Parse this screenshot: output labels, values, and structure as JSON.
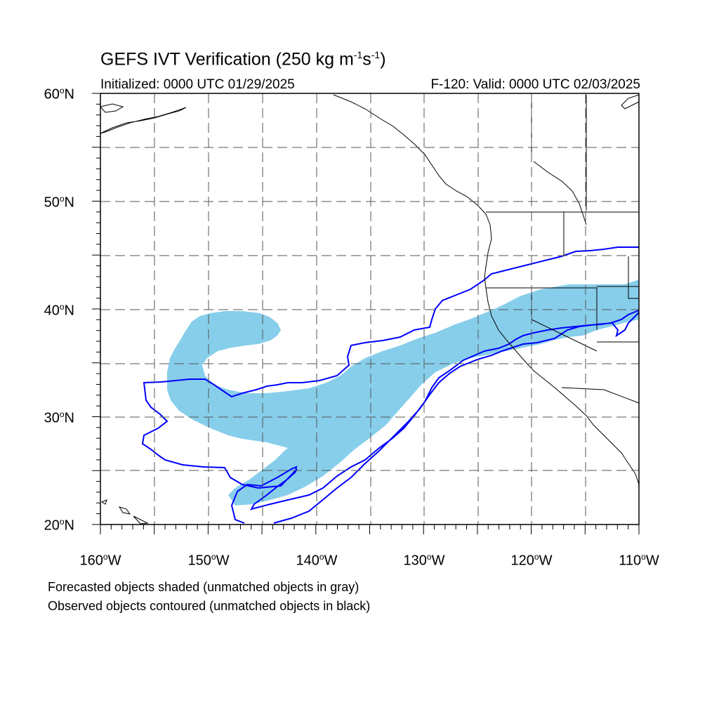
{
  "title": {
    "main": "GEFS IVT Verification (250 kg m",
    "sup1": "-1",
    "mid": "s",
    "sup2": "-1",
    "end": ")"
  },
  "init_label": "Initialized: 0000 UTC 01/29/2025",
  "valid_label": "F-120: Valid: 0000 UTC 02/03/2025",
  "lat_labels": [
    {
      "deg": "60",
      "hemi": "N"
    },
    {
      "deg": "50",
      "hemi": "N"
    },
    {
      "deg": "40",
      "hemi": "N"
    },
    {
      "deg": "30",
      "hemi": "N"
    },
    {
      "deg": "20",
      "hemi": "N"
    }
  ],
  "lon_labels": [
    {
      "deg": "160",
      "hemi": "W"
    },
    {
      "deg": "150",
      "hemi": "W"
    },
    {
      "deg": "140",
      "hemi": "W"
    },
    {
      "deg": "130",
      "hemi": "W"
    },
    {
      "deg": "120",
      "hemi": "W"
    },
    {
      "deg": "110",
      "hemi": "W"
    }
  ],
  "caption_forecast": "Forecasted objects shaded (unmatched objects in gray)",
  "caption_observed": "Observed objects contoured (unmatched objects in black)",
  "colors": {
    "forecast_fill": "#87ceeb",
    "observed_contour": "#0000ff",
    "coastline": "#000000",
    "grid": "#000000"
  }
}
